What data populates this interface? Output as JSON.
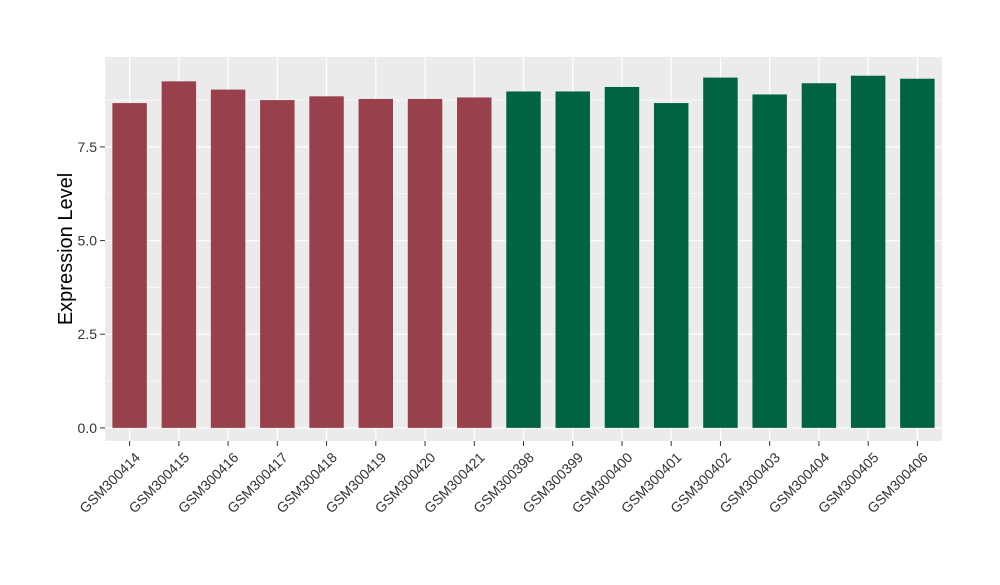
{
  "chart_data": {
    "type": "bar",
    "ylabel": "Expression Level",
    "xlabel": "",
    "ylim": [
      -0.35,
      9.9
    ],
    "yticks": [
      0.0,
      2.5,
      5.0,
      7.5
    ],
    "ytick_labels": [
      "0.0",
      "2.5",
      "5.0",
      "7.5"
    ],
    "grid": true,
    "legend": "none",
    "categories": [
      "GSM300414",
      "GSM300415",
      "GSM300416",
      "GSM300417",
      "GSM300418",
      "GSM300419",
      "GSM300420",
      "GSM300421",
      "GSM300398",
      "GSM300399",
      "GSM300400",
      "GSM300401",
      "GSM300402",
      "GSM300403",
      "GSM300404",
      "GSM300405",
      "GSM300406"
    ],
    "values": [
      8.67,
      9.25,
      9.03,
      8.75,
      8.85,
      8.78,
      8.78,
      8.82,
      8.98,
      8.98,
      9.1,
      8.67,
      9.35,
      8.9,
      9.2,
      9.4,
      9.32
    ],
    "colors": [
      "#99404d",
      "#99404d",
      "#99404d",
      "#99404d",
      "#99404d",
      "#99404d",
      "#99404d",
      "#99404d",
      "#006442",
      "#006442",
      "#006442",
      "#006442",
      "#006442",
      "#006442",
      "#006442",
      "#006442",
      "#006442"
    ],
    "panel_background": "#ebebeb",
    "gridline_color": "#ffffff"
  }
}
